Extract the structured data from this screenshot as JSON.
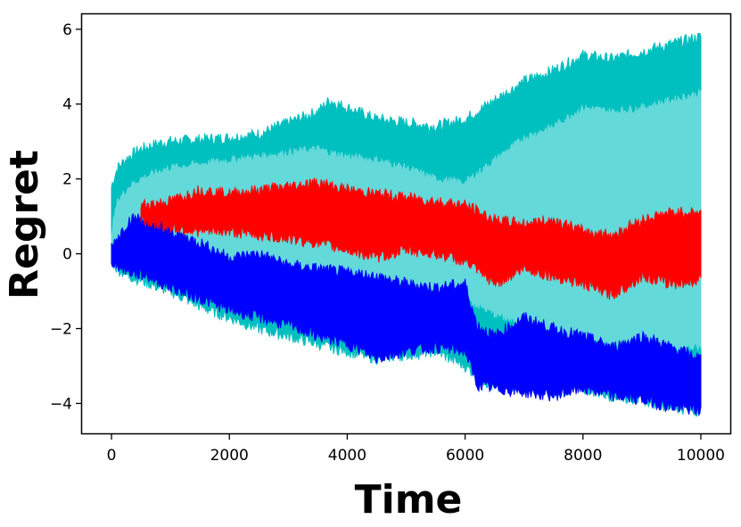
{
  "chart_data": {
    "type": "area",
    "title": "",
    "xlabel": "Time",
    "ylabel": "Regret",
    "xlim": [
      -500,
      10500
    ],
    "ylim": [
      -4.8,
      6.4
    ],
    "xticks": [
      0,
      2000,
      4000,
      6000,
      8000,
      10000
    ],
    "xtick_labels": [
      "0",
      "2000",
      "4000",
      "6000",
      "8000",
      "10000"
    ],
    "yticks": [
      -4,
      -2,
      0,
      2,
      4,
      6
    ],
    "ytick_labels": [
      "−4",
      "−2",
      "0",
      "2",
      "4",
      "6"
    ],
    "grid": false,
    "legend": "none",
    "x": [
      0,
      100,
      300,
      500,
      800,
      1000,
      1500,
      2000,
      2500,
      3000,
      3500,
      3700,
      4000,
      4500,
      5000,
      5500,
      6000,
      6500,
      7000,
      7500,
      8000,
      8500,
      9000,
      9500,
      10000
    ],
    "series": [
      {
        "color": "#00bfbf",
        "fill_color": "#63d9d9",
        "upper_outer": [
          1.8,
          2.3,
          2.6,
          2.8,
          2.95,
          3.0,
          3.05,
          3.1,
          3.2,
          3.5,
          3.8,
          4.1,
          3.9,
          3.6,
          3.5,
          3.4,
          3.6,
          4.1,
          4.6,
          4.9,
          5.3,
          5.2,
          5.4,
          5.6,
          5.8
        ],
        "upper_inner": [
          0.6,
          1.4,
          1.8,
          2.0,
          2.2,
          2.3,
          2.4,
          2.5,
          2.6,
          2.7,
          2.8,
          2.7,
          2.6,
          2.5,
          2.3,
          2.0,
          1.9,
          2.5,
          3.1,
          3.4,
          3.9,
          3.8,
          3.9,
          4.1,
          4.3
        ],
        "lower_inner": [
          -0.1,
          -0.2,
          -0.3,
          -0.3,
          -0.2,
          -0.2,
          -0.3,
          -0.4,
          -0.5,
          -0.6,
          -0.7,
          -0.8,
          -0.9,
          -1.0,
          -1.1,
          -1.0,
          -1.2,
          -1.6,
          -1.9,
          -2.1,
          -2.3,
          -2.4,
          -2.4,
          -2.5,
          -2.5
        ],
        "lower_outer": [
          -0.2,
          -0.4,
          -0.6,
          -0.7,
          -0.9,
          -1.0,
          -1.4,
          -1.7,
          -2.0,
          -2.2,
          -2.4,
          -2.5,
          -2.6,
          -2.8,
          -2.7,
          -2.6,
          -3.0,
          -3.6,
          -3.5,
          -3.7,
          -3.6,
          -3.8,
          -3.9,
          -4.1,
          -4.2
        ]
      },
      {
        "color": "#ff0000",
        "x": [
          500,
          1000,
          1500,
          2000,
          2500,
          3000,
          3500,
          4000,
          4500,
          5000,
          5500,
          6000,
          6500,
          7000,
          7500,
          8000,
          8500,
          9000,
          9500,
          10000
        ],
        "upper": [
          1.3,
          1.4,
          1.7,
          1.6,
          1.7,
          1.8,
          1.9,
          1.7,
          1.6,
          1.5,
          1.4,
          1.3,
          0.9,
          0.8,
          0.9,
          0.6,
          0.5,
          0.9,
          1.1,
          1.1
        ],
        "lower": [
          0.9,
          0.7,
          0.6,
          0.6,
          0.5,
          0.4,
          0.3,
          0.1,
          -0.1,
          0.1,
          0.0,
          -0.2,
          -0.8,
          -0.4,
          -0.6,
          -0.8,
          -1.1,
          -0.6,
          -0.8,
          -0.7
        ]
      },
      {
        "color": "#0000ff",
        "x": [
          0,
          300,
          600,
          1000,
          1500,
          2000,
          2500,
          3000,
          3500,
          4000,
          4500,
          5000,
          5500,
          6000,
          6200,
          6500,
          7000,
          7500,
          8000,
          8500,
          9000,
          9500,
          10000
        ],
        "upper": [
          0.2,
          0.9,
          1.0,
          0.6,
          0.3,
          -0.1,
          0.0,
          -0.3,
          -0.4,
          -0.5,
          -0.6,
          -0.8,
          -0.9,
          -0.8,
          -1.9,
          -2.2,
          -1.7,
          -2.0,
          -2.2,
          -2.5,
          -2.2,
          -2.5,
          -2.8
        ],
        "lower": [
          -0.2,
          -0.5,
          -0.6,
          -0.9,
          -1.2,
          -1.5,
          -1.7,
          -1.9,
          -2.2,
          -2.4,
          -2.8,
          -2.6,
          -2.5,
          -2.6,
          -3.5,
          -3.6,
          -3.7,
          -3.8,
          -3.6,
          -3.8,
          -3.9,
          -4.1,
          -4.2
        ]
      }
    ]
  }
}
